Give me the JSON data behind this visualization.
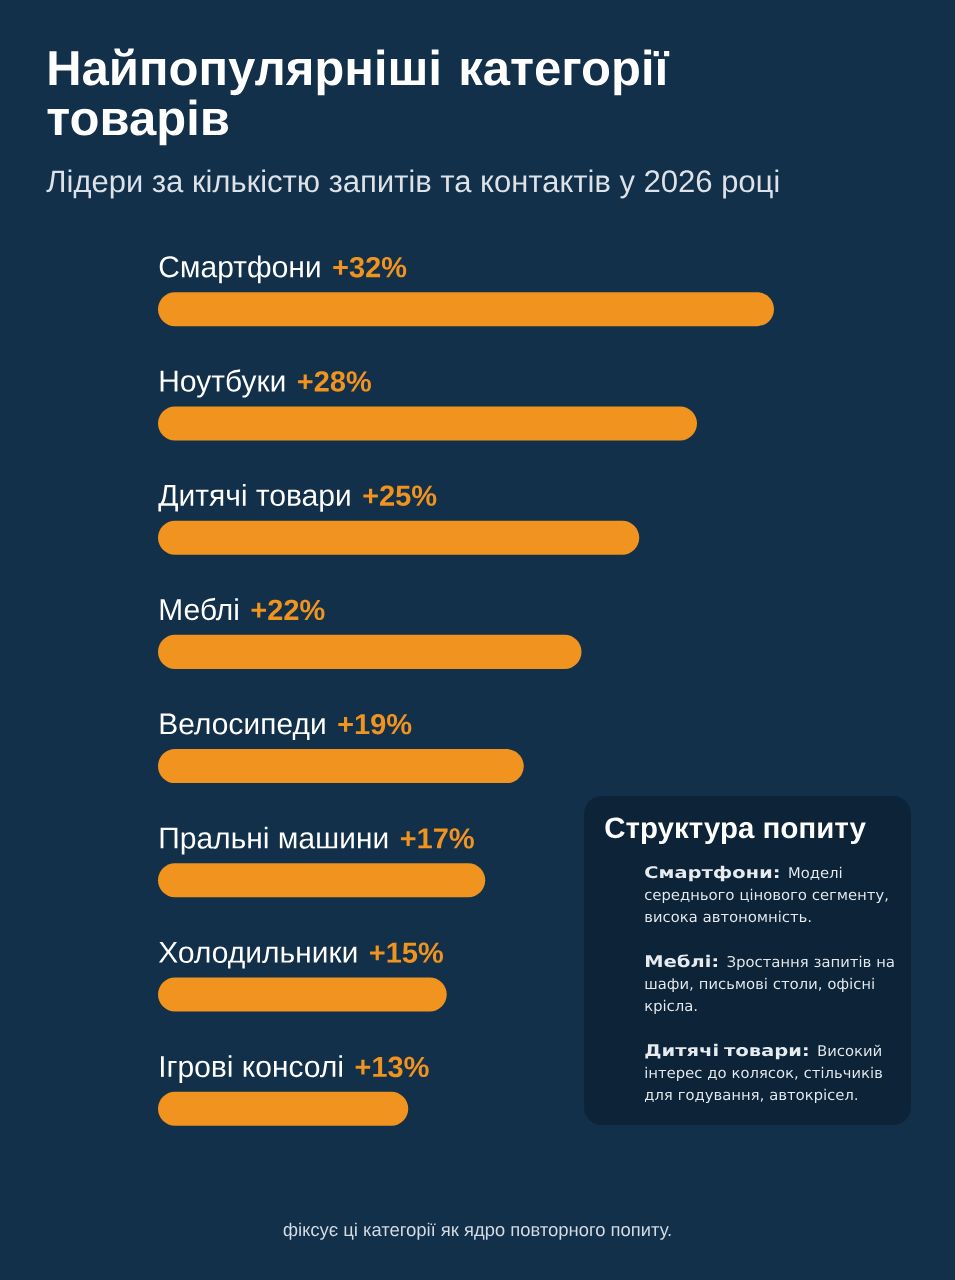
{
  "chart_data": [
    {
      "type": "bar",
      "orientation": "horizontal",
      "title": "Найпопулярніші категорії товарів",
      "subtitle": "Лідери за кількістю запитів та контактів у 2026 році",
      "categories": [
        "Смартфони",
        "Ноутбуки",
        "Дитячі товари",
        "Меблі",
        "Велосипеди",
        "Пральні машини",
        "Холодильники",
        "Ігрові консолі"
      ],
      "values": [
        32,
        28,
        25,
        22,
        19,
        17,
        15,
        13
      ],
      "value_labels": [
        "+32%",
        "+28%",
        "+25%",
        "+22%",
        "+19%",
        "+17%",
        "+15%",
        "+13%"
      ],
      "color": "#f0931f",
      "tick_labels": "y",
      "annotations": [
        "фіксує ці категорії як ядро повторного попиту."
      ]
    },
    {
      "type": "other",
      "title": "Структура попиту",
      "annotations": [
        "**Смартфони:** Моделі середнього цінового сегменту, висока автономність.",
        "**Меблі:** Зростання запитів на шафи, письмові столи, офісні крісла.",
        "**Дитячі товари:** Високий інтерес до колясок, стільчиків для годування, автокрісел."
      ]
    }
  ]
}
